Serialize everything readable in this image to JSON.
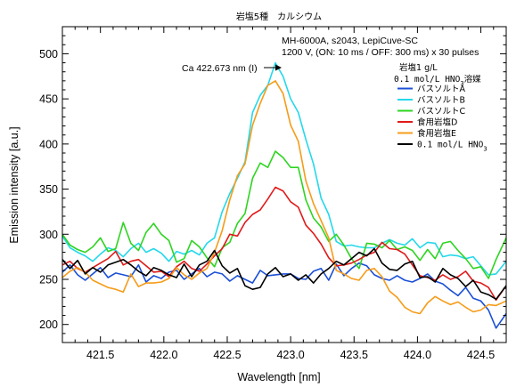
{
  "chart_data": {
    "type": "line",
    "title": "岩塩5種　カルシウム",
    "xlabel": "Wavelength [nm]",
    "ylabel": "Emission intensity [a.u.]",
    "xlim": [
      421.2,
      424.7
    ],
    "ylim": [
      180,
      530
    ],
    "xticks": [
      421.5,
      422.0,
      422.5,
      423.0,
      423.5,
      424.0,
      424.5
    ],
    "xtick_labels": [
      "421.5",
      "422.0",
      "422.5",
      "423.0",
      "423.5",
      "424.0",
      "424.5"
    ],
    "yticks": [
      200,
      250,
      300,
      350,
      400,
      450,
      500
    ],
    "ytick_labels": [
      "200",
      "250",
      "300",
      "350",
      "400",
      "450",
      "500"
    ],
    "grid": false,
    "annotation": {
      "line1": "MH-6000A, s2043, LepiCuve-SC",
      "line2": "1200 V, (ON: 10 ms / OFF: 300 ms) x 30 pulses"
    },
    "peak_label": {
      "text": "Ca 422.673 nm (I)",
      "x": 422.87,
      "y": 493
    },
    "legend": {
      "position": "top-right",
      "header1": "岩塩1 g/L",
      "header2_main": "0.1 mol/L HNO",
      "header2_sub": "3",
      "header2_tail": "溶媒"
    },
    "series": [
      {
        "name": "バスソルトA",
        "label_main": "バスソルトA",
        "label_sub": "",
        "color": "#1a4fd6",
        "x": [
          421.2,
          421.26,
          421.32,
          421.38,
          421.44,
          421.5,
          421.56,
          421.62,
          421.68,
          421.74,
          421.8,
          421.86,
          421.92,
          421.98,
          422.04,
          422.1,
          422.16,
          422.22,
          422.28,
          422.34,
          422.4,
          422.46,
          422.52,
          422.58,
          422.64,
          422.7,
          422.76,
          422.82,
          422.88,
          422.94,
          423.0,
          423.06,
          423.12,
          423.18,
          423.24,
          423.3,
          423.36,
          423.42,
          423.48,
          423.54,
          423.6,
          423.66,
          423.72,
          423.78,
          423.84,
          423.9,
          423.96,
          424.02,
          424.08,
          424.14,
          424.2,
          424.26,
          424.32,
          424.38,
          424.44,
          424.5,
          424.56,
          424.62,
          424.7
        ],
        "y": [
          258,
          266,
          255,
          249,
          256,
          263,
          252,
          257,
          255,
          253,
          266,
          247,
          254,
          251,
          258,
          260,
          250,
          256,
          262,
          253,
          258,
          256,
          248,
          254,
          250,
          246,
          260,
          254,
          255,
          256,
          256,
          251,
          250,
          259,
          262,
          249,
          267,
          254,
          262,
          268,
          265,
          255,
          251,
          249,
          254,
          249,
          247,
          251,
          256,
          248,
          245,
          238,
          232,
          241,
          229,
          226,
          216,
          196,
          212
        ]
      },
      {
        "name": "バスソルトB",
        "label_main": "バスソルトB",
        "label_sub": "",
        "color": "#24d8ea",
        "x": [
          421.2,
          421.26,
          421.32,
          421.38,
          421.44,
          421.5,
          421.56,
          421.62,
          421.68,
          421.74,
          421.8,
          421.86,
          421.92,
          421.98,
          422.04,
          422.1,
          422.16,
          422.22,
          422.28,
          422.34,
          422.4,
          422.46,
          422.52,
          422.58,
          422.64,
          422.7,
          422.76,
          422.82,
          422.88,
          422.94,
          423.0,
          423.06,
          423.12,
          423.18,
          423.24,
          423.3,
          423.36,
          423.42,
          423.48,
          423.54,
          423.6,
          423.66,
          423.72,
          423.78,
          423.84,
          423.9,
          423.96,
          424.02,
          424.08,
          424.14,
          424.2,
          424.26,
          424.32,
          424.38,
          424.44,
          424.5,
          424.56,
          424.62,
          424.7
        ],
        "y": [
          298,
          285,
          280,
          276,
          270,
          278,
          285,
          282,
          275,
          284,
          290,
          280,
          284,
          279,
          270,
          281,
          278,
          282,
          277,
          290,
          296,
          325,
          345,
          362,
          380,
          435,
          454,
          465,
          490,
          475,
          450,
          435,
          405,
          378,
          340,
          322,
          292,
          287,
          288,
          286,
          285,
          285,
          290,
          294,
          290,
          288,
          295,
          285,
          291,
          290,
          275,
          277,
          276,
          273,
          275,
          265,
          255,
          256,
          270
        ]
      },
      {
        "name": "バスソルトC",
        "label_main": "バスソルトC",
        "label_sub": "",
        "color": "#2ed421",
        "x": [
          421.2,
          421.26,
          421.32,
          421.38,
          421.44,
          421.5,
          421.56,
          421.62,
          421.68,
          421.74,
          421.8,
          421.86,
          421.92,
          421.98,
          422.04,
          422.1,
          422.16,
          422.22,
          422.28,
          422.34,
          422.4,
          422.46,
          422.52,
          422.58,
          422.64,
          422.7,
          422.76,
          422.82,
          422.88,
          422.94,
          423.0,
          423.06,
          423.12,
          423.18,
          423.24,
          423.3,
          423.36,
          423.42,
          423.48,
          423.54,
          423.6,
          423.66,
          423.72,
          423.78,
          423.84,
          423.9,
          423.96,
          424.02,
          424.08,
          424.14,
          424.2,
          424.26,
          424.32,
          424.38,
          424.44,
          424.5,
          424.56,
          424.62,
          424.7
        ],
        "y": [
          300,
          288,
          283,
          280,
          286,
          296,
          281,
          284,
          313,
          290,
          282,
          302,
          312,
          300,
          293,
          269,
          273,
          293,
          286,
          274,
          264,
          285,
          291,
          312,
          323,
          362,
          379,
          374,
          392,
          385,
          374,
          374,
          338,
          318,
          308,
          292,
          300,
          288,
          273,
          262,
          290,
          289,
          285,
          293,
          283,
          286,
          282,
          271,
          283,
          273,
          290,
          292,
          282,
          273,
          262,
          264,
          251,
          272,
          296
        ]
      },
      {
        "name": "食用岩塩D",
        "label_main": "食用岩塩D",
        "label_sub": "",
        "color": "#e01a1a",
        "x": [
          421.2,
          421.26,
          421.32,
          421.38,
          421.44,
          421.5,
          421.56,
          421.62,
          421.68,
          421.74,
          421.8,
          421.86,
          421.92,
          421.98,
          422.04,
          422.1,
          422.16,
          422.22,
          422.28,
          422.34,
          422.4,
          422.46,
          422.52,
          422.58,
          422.64,
          422.7,
          422.76,
          422.82,
          422.88,
          422.94,
          423.0,
          423.06,
          423.12,
          423.18,
          423.24,
          423.3,
          423.36,
          423.42,
          423.48,
          423.54,
          423.6,
          423.66,
          423.72,
          423.78,
          423.84,
          423.9,
          423.96,
          424.02,
          424.08,
          424.14,
          424.2,
          424.26,
          424.32,
          424.38,
          424.44,
          424.5,
          424.56,
          424.62,
          424.7
        ],
        "y": [
          266,
          270,
          262,
          258,
          263,
          268,
          273,
          281,
          266,
          270,
          272,
          265,
          258,
          259,
          253,
          264,
          270,
          262,
          259,
          267,
          276,
          284,
          300,
          298,
          313,
          322,
          327,
          339,
          352,
          348,
          336,
          330,
          310,
          301,
          289,
          274,
          265,
          266,
          268,
          272,
          277,
          280,
          291,
          284,
          283,
          278,
          266,
          254,
          252,
          249,
          255,
          250,
          253,
          259,
          248,
          246,
          241,
          227,
          243
        ]
      },
      {
        "name": "食用岩塩E",
        "label_main": "食用岩塩E",
        "label_sub": "",
        "color": "#f59c19",
        "x": [
          421.2,
          421.26,
          421.32,
          421.38,
          421.44,
          421.5,
          421.56,
          421.62,
          421.68,
          421.74,
          421.8,
          421.86,
          421.92,
          421.98,
          422.04,
          422.1,
          422.16,
          422.22,
          422.28,
          422.34,
          422.4,
          422.46,
          422.52,
          422.58,
          422.64,
          422.7,
          422.76,
          422.82,
          422.88,
          422.94,
          423.0,
          423.06,
          423.12,
          423.18,
          423.24,
          423.3,
          423.36,
          423.42,
          423.48,
          423.54,
          423.6,
          423.66,
          423.72,
          423.78,
          423.84,
          423.9,
          423.96,
          424.02,
          424.08,
          424.14,
          424.2,
          424.26,
          424.32,
          424.38,
          424.44,
          424.5,
          424.56,
          424.62,
          424.7
        ],
        "y": [
          252,
          259,
          263,
          258,
          249,
          245,
          241,
          239,
          236,
          256,
          242,
          246,
          246,
          247,
          251,
          263,
          255,
          250,
          257,
          262,
          280,
          304,
          338,
          365,
          378,
          421,
          445,
          465,
          470,
          456,
          421,
          403,
          359,
          334,
          315,
          296,
          260,
          256,
          251,
          249,
          260,
          262,
          253,
          237,
          230,
          219,
          214,
          212,
          224,
          231,
          226,
          222,
          225,
          219,
          214,
          216,
          222,
          221,
          226
        ]
      },
      {
        "name": "0.1 mol/L HNO3",
        "label_main": "0.1 mol/L HNO",
        "label_sub": "3",
        "color": "#000000",
        "x": [
          421.2,
          421.26,
          421.32,
          421.38,
          421.44,
          421.5,
          421.56,
          421.62,
          421.68,
          421.74,
          421.8,
          421.86,
          421.92,
          421.98,
          422.04,
          422.1,
          422.16,
          422.22,
          422.28,
          422.34,
          422.4,
          422.46,
          422.52,
          422.58,
          422.64,
          422.7,
          422.76,
          422.82,
          422.88,
          422.94,
          423.0,
          423.06,
          423.12,
          423.18,
          423.24,
          423.3,
          423.36,
          423.42,
          423.48,
          423.54,
          423.6,
          423.66,
          423.72,
          423.78,
          423.84,
          423.9,
          423.96,
          424.02,
          424.08,
          424.14,
          424.2,
          424.26,
          424.32,
          424.38,
          424.44,
          424.5,
          424.56,
          424.62,
          424.7
        ],
        "y": [
          272,
          262,
          271,
          256,
          263,
          258,
          266,
          269,
          272,
          266,
          259,
          254,
          263,
          260,
          255,
          252,
          267,
          253,
          266,
          270,
          282,
          265,
          257,
          262,
          243,
          239,
          241,
          256,
          263,
          253,
          256,
          249,
          255,
          246,
          256,
          262,
          270,
          266,
          273,
          280,
          276,
          284,
          268,
          261,
          260,
          267,
          270,
          252,
          253,
          247,
          262,
          255,
          251,
          242,
          249,
          236,
          233,
          228,
          243
        ]
      }
    ]
  }
}
